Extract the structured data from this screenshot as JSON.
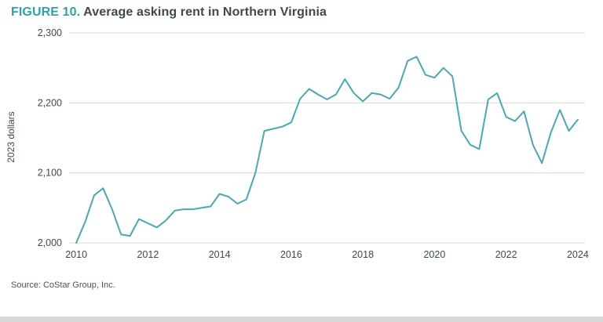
{
  "header": {
    "figure_label": "FIGURE 10.",
    "title": "Average asking rent in Northern Virginia"
  },
  "footer": {
    "source": "Source: CoStar Group, Inc."
  },
  "colors": {
    "accent_teal": "#2ea1ac",
    "line_teal": "#4ba7b2",
    "grid_gray": "#d9d9d9",
    "text_dark": "#3d4a4c",
    "bottom_strip": "#d8d8d8"
  },
  "chart_data": {
    "type": "line",
    "title": "Average asking rent in Northern Virginia",
    "xlabel": "",
    "ylabel": "2023 dollars",
    "x_start": 2010,
    "x_step": 0.25,
    "values": [
      2000,
      2030,
      2068,
      2078,
      2048,
      2012,
      2010,
      2034,
      2028,
      2022,
      2032,
      2046,
      2048,
      2048,
      2050,
      2052,
      2070,
      2066,
      2056,
      2062,
      2100,
      2160,
      2163,
      2166,
      2172,
      2206,
      2220,
      2212,
      2205,
      2212,
      2234,
      2214,
      2202,
      2214,
      2212,
      2206,
      2222,
      2260,
      2266,
      2240,
      2236,
      2250,
      2238,
      2160,
      2140,
      2134,
      2205,
      2214,
      2180,
      2174,
      2188,
      2140,
      2114,
      2158,
      2190,
      2160,
      2176
    ],
    "ylim": [
      2000,
      2300
    ],
    "xlim": [
      2009.8,
      2024.2
    ],
    "yticks": [
      2000,
      2100,
      2200,
      2300
    ],
    "xticks": [
      2010,
      2012,
      2014,
      2016,
      2018,
      2020,
      2022,
      2024
    ],
    "grid": true,
    "legend": "none",
    "line_color": "#4ba7b2"
  }
}
